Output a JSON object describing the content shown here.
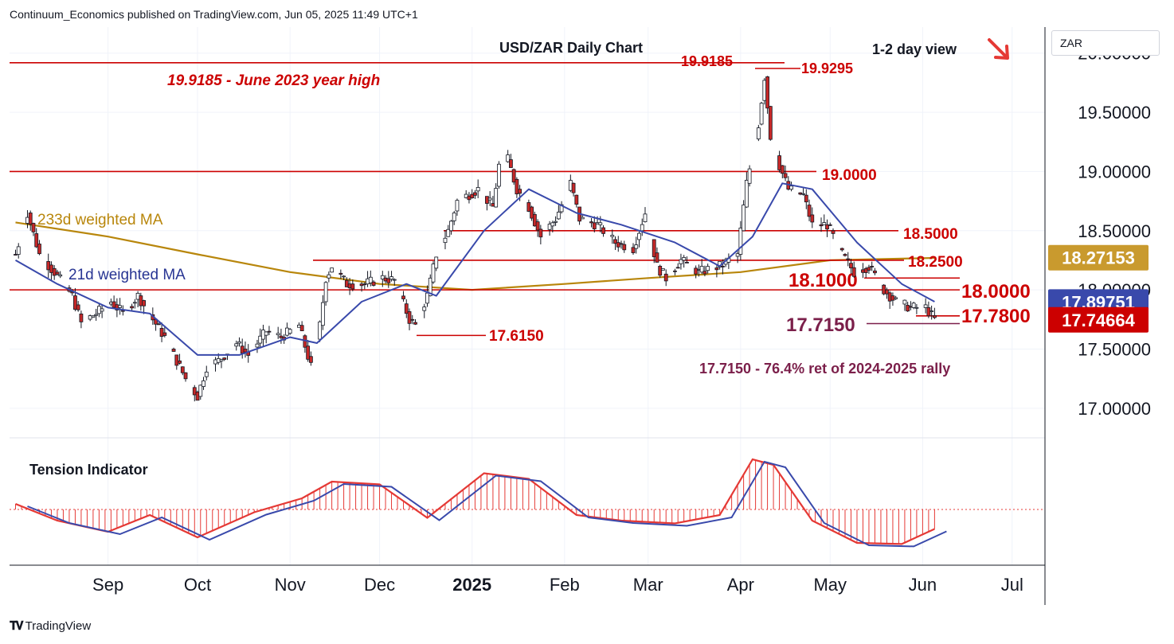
{
  "publisher": "Continuum_Economics published on TradingView.com, Jun 05, 2025 11:49 UTC+1",
  "branding": {
    "logo_text": "TradingView",
    "logo_icon": "tradingview-logo-icon"
  },
  "currency_box": "ZAR",
  "colors": {
    "up": "#2a6b2a",
    "down": "#c62828",
    "level": "#cc0000",
    "ma21": "#3949ab",
    "ma233": "#b8860b",
    "annot": "#7b1f4a",
    "tension": "#e53935",
    "tension_signal": "#3949ab"
  },
  "chart_data": {
    "type": "candlestick",
    "title": "USD/ZAR Daily Chart",
    "subtitle": "1-2 day view",
    "view_arrow": "arrow-down-right-icon",
    "x_ticks": [
      "Sep",
      "Oct",
      "Nov",
      "Dec",
      "2025",
      "Feb",
      "Mar",
      "Apr",
      "May",
      "Jun",
      "Jul"
    ],
    "y_ticks": [
      "20.00000",
      "19.50000",
      "19.00000",
      "18.50000",
      "18.00000",
      "17.50000",
      "17.00000"
    ],
    "y_tick_values": [
      20.0,
      19.5,
      19.0,
      18.5,
      18.0,
      17.5,
      17.0
    ],
    "y_range": [
      16.75,
      20.22
    ],
    "price_labels": [
      {
        "label": "18.27153",
        "value": 18.27153,
        "color": "#c99a2e",
        "series": "233d weighted MA"
      },
      {
        "label": "17.89751",
        "value": 17.89751,
        "color": "#3949ab",
        "series": "21d weighted MA"
      },
      {
        "label": "17.74664",
        "value": 17.74664,
        "color": "#cc0000",
        "series": "price"
      }
    ],
    "levels": [
      {
        "value": 19.9185,
        "label": "19.9185 - June 2023 year high",
        "kind": "resistance"
      },
      {
        "value": 19.0,
        "label": "19.0000",
        "kind": "resistance"
      },
      {
        "value": 18.5,
        "label": "18.5000",
        "kind": "resistance"
      },
      {
        "value": 18.25,
        "label": "18.2500",
        "kind": "resistance"
      },
      {
        "value": 18.1,
        "label": "18.1000",
        "kind": "resistance"
      },
      {
        "value": 18.0,
        "label": "18.0000",
        "kind": "resistance"
      },
      {
        "value": 17.78,
        "label": "17.7800",
        "kind": "support"
      },
      {
        "value": 17.715,
        "label": "17.7150",
        "kind": "support"
      },
      {
        "value": 17.615,
        "label": "17.6150",
        "kind": "support"
      }
    ],
    "annotations": {
      "high_left": "19.9185",
      "high_right": "19.9295",
      "fib_note": "17.7150 - 76.4% ret of 2024-2025 rally",
      "ma233_label": "233d weighted MA",
      "ma21_label": "21d weighted MA"
    },
    "price_path": [
      [
        "2024-08-01",
        18.3
      ],
      [
        "2024-08-05",
        18.65
      ],
      [
        "2024-08-09",
        18.3
      ],
      [
        "2024-08-14",
        18.15
      ],
      [
        "2024-08-20",
        17.95
      ],
      [
        "2024-08-23",
        17.72
      ],
      [
        "2024-08-28",
        17.8
      ],
      [
        "2024-09-02",
        17.9
      ],
      [
        "2024-09-06",
        17.8
      ],
      [
        "2024-09-11",
        17.95
      ],
      [
        "2024-09-16",
        17.75
      ],
      [
        "2024-09-20",
        17.6
      ],
      [
        "2024-09-24",
        17.4
      ],
      [
        "2024-09-27",
        17.25
      ],
      [
        "2024-10-01",
        17.1
      ],
      [
        "2024-10-04",
        17.35
      ],
      [
        "2024-10-08",
        17.4
      ],
      [
        "2024-10-14",
        17.55
      ],
      [
        "2024-10-18",
        17.45
      ],
      [
        "2024-10-24",
        17.65
      ],
      [
        "2024-10-29",
        17.6
      ],
      [
        "2024-11-04",
        17.7
      ],
      [
        "2024-11-08",
        17.35
      ],
      [
        "2024-11-11",
        17.7
      ],
      [
        "2024-11-13",
        18.1
      ],
      [
        "2024-11-15",
        18.2
      ],
      [
        "2024-11-20",
        18.05
      ],
      [
        "2024-11-26",
        18.05
      ],
      [
        "2024-12-02",
        18.1
      ],
      [
        "2024-12-06",
        18.08
      ],
      [
        "2024-12-11",
        17.75
      ],
      [
        "2024-12-13",
        17.7
      ],
      [
        "2024-12-17",
        17.95
      ],
      [
        "2024-12-20",
        18.3
      ],
      [
        "2024-12-24",
        18.5
      ],
      [
        "2024-12-27",
        18.75
      ],
      [
        "2025-01-03",
        18.85
      ],
      [
        "2025-01-08",
        18.7
      ],
      [
        "2025-01-10",
        19.05
      ],
      [
        "2025-01-13",
        19.1
      ],
      [
        "2025-01-16",
        18.85
      ],
      [
        "2025-01-20",
        18.7
      ],
      [
        "2025-01-24",
        18.45
      ],
      [
        "2025-01-29",
        18.6
      ],
      [
        "2025-02-03",
        18.9
      ],
      [
        "2025-02-06",
        18.6
      ],
      [
        "2025-02-12",
        18.55
      ],
      [
        "2025-02-18",
        18.4
      ],
      [
        "2025-02-24",
        18.35
      ],
      [
        "2025-02-28",
        18.65
      ],
      [
        "2025-03-04",
        18.2
      ],
      [
        "2025-03-07",
        18.1
      ],
      [
        "2025-03-12",
        18.25
      ],
      [
        "2025-03-18",
        18.15
      ],
      [
        "2025-03-25",
        18.2
      ],
      [
        "2025-03-31",
        18.3
      ],
      [
        "2025-04-03",
        18.9
      ],
      [
        "2025-04-07",
        19.4
      ],
      [
        "2025-04-09",
        19.8
      ],
      [
        "2025-04-11",
        19.3
      ],
      [
        "2025-04-14",
        19.05
      ],
      [
        "2025-04-17",
        18.85
      ],
      [
        "2025-04-22",
        18.8
      ],
      [
        "2025-04-25",
        18.55
      ],
      [
        "2025-04-30",
        18.55
      ],
      [
        "2025-05-05",
        18.3
      ],
      [
        "2025-05-09",
        18.15
      ],
      [
        "2025-05-14",
        18.2
      ],
      [
        "2025-05-19",
        18.0
      ],
      [
        "2025-05-23",
        17.9
      ],
      [
        "2025-05-28",
        17.85
      ],
      [
        "2025-06-02",
        17.85
      ],
      [
        "2025-06-05",
        17.75
      ]
    ],
    "ma21_path": [
      [
        "2024-08-01",
        18.25
      ],
      [
        "2024-08-15",
        18.05
      ],
      [
        "2024-09-01",
        17.85
      ],
      [
        "2024-09-15",
        17.8
      ],
      [
        "2024-10-01",
        17.45
      ],
      [
        "2024-10-15",
        17.45
      ],
      [
        "2024-11-01",
        17.6
      ],
      [
        "2024-11-10",
        17.55
      ],
      [
        "2024-11-25",
        17.9
      ],
      [
        "2024-12-10",
        18.05
      ],
      [
        "2024-12-20",
        17.95
      ],
      [
        "2025-01-05",
        18.5
      ],
      [
        "2025-01-20",
        18.85
      ],
      [
        "2025-02-05",
        18.65
      ],
      [
        "2025-02-20",
        18.55
      ],
      [
        "2025-03-10",
        18.4
      ],
      [
        "2025-03-25",
        18.2
      ],
      [
        "2025-04-05",
        18.45
      ],
      [
        "2025-04-15",
        18.9
      ],
      [
        "2025-04-25",
        18.85
      ],
      [
        "2025-05-10",
        18.4
      ],
      [
        "2025-05-25",
        18.05
      ],
      [
        "2025-06-05",
        17.9
      ]
    ],
    "ma233_path": [
      [
        "2024-08-01",
        18.57
      ],
      [
        "2024-09-01",
        18.45
      ],
      [
        "2024-10-01",
        18.3
      ],
      [
        "2024-11-01",
        18.15
      ],
      [
        "2024-12-01",
        18.05
      ],
      [
        "2025-01-01",
        18.0
      ],
      [
        "2025-02-01",
        18.05
      ],
      [
        "2025-03-01",
        18.1
      ],
      [
        "2025-04-01",
        18.15
      ],
      [
        "2025-05-01",
        18.25
      ],
      [
        "2025-06-05",
        18.27
      ]
    ],
    "tension": {
      "title": "Tension Indicator",
      "baseline": 0,
      "path": [
        [
          "2024-08-01",
          0.1
        ],
        [
          "2024-08-15",
          -0.2
        ],
        [
          "2024-09-01",
          -0.4
        ],
        [
          "2024-09-15",
          -0.1
        ],
        [
          "2024-10-01",
          -0.5
        ],
        [
          "2024-10-20",
          -0.05
        ],
        [
          "2024-11-05",
          0.2
        ],
        [
          "2024-11-15",
          0.5
        ],
        [
          "2024-12-01",
          0.45
        ],
        [
          "2024-12-17",
          -0.15
        ],
        [
          "2025-01-05",
          0.65
        ],
        [
          "2025-01-20",
          0.55
        ],
        [
          "2025-02-05",
          -0.1
        ],
        [
          "2025-02-20",
          -0.2
        ],
        [
          "2025-03-10",
          -0.25
        ],
        [
          "2025-03-25",
          -0.1
        ],
        [
          "2025-04-05",
          0.9
        ],
        [
          "2025-04-12",
          0.8
        ],
        [
          "2025-04-25",
          -0.2
        ],
        [
          "2025-05-10",
          -0.6
        ],
        [
          "2025-05-25",
          -0.62
        ],
        [
          "2025-06-05",
          -0.35
        ]
      ]
    }
  }
}
